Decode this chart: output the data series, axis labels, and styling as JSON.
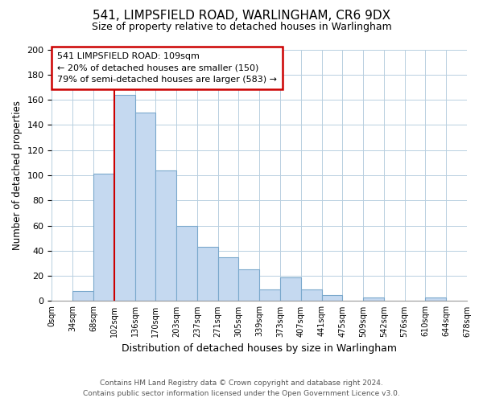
{
  "title": "541, LIMPSFIELD ROAD, WARLINGHAM, CR6 9DX",
  "subtitle": "Size of property relative to detached houses in Warlingham",
  "xlabel": "Distribution of detached houses by size in Warlingham",
  "ylabel": "Number of detached properties",
  "bar_color": "#c5d9f0",
  "bar_edge_color": "#7aa8cc",
  "background_color": "#ffffff",
  "grid_color": "#b8cfe0",
  "tick_labels": [
    "0sqm",
    "34sqm",
    "68sqm",
    "102sqm",
    "136sqm",
    "170sqm",
    "203sqm",
    "237sqm",
    "271sqm",
    "305sqm",
    "339sqm",
    "373sqm",
    "407sqm",
    "441sqm",
    "475sqm",
    "509sqm",
    "542sqm",
    "576sqm",
    "610sqm",
    "644sqm",
    "678sqm"
  ],
  "bar_heights": [
    0,
    8,
    101,
    164,
    150,
    104,
    60,
    43,
    35,
    25,
    9,
    19,
    9,
    5,
    0,
    3,
    0,
    0,
    3,
    0,
    0
  ],
  "ylim": [
    0,
    200
  ],
  "yticks": [
    0,
    20,
    40,
    60,
    80,
    100,
    120,
    140,
    160,
    180,
    200
  ],
  "property_line_x": 3,
  "annotation_title": "541 LIMPSFIELD ROAD: 109sqm",
  "annotation_line1": "← 20% of detached houses are smaller (150)",
  "annotation_line2": "79% of semi-detached houses are larger (583) →",
  "annotation_box_color": "#ffffff",
  "annotation_box_edge": "#cc0000",
  "line_color": "#cc0000",
  "footer1": "Contains HM Land Registry data © Crown copyright and database right 2024.",
  "footer2": "Contains public sector information licensed under the Open Government Licence v3.0."
}
